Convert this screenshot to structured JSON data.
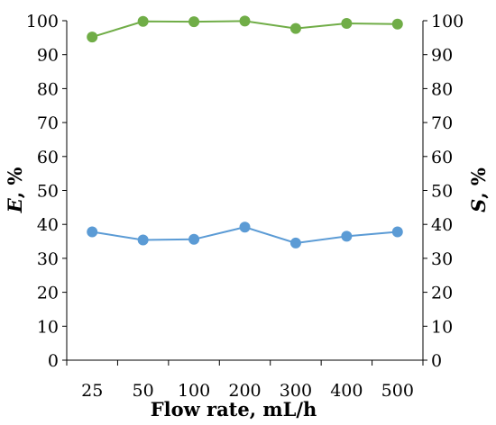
{
  "chart_data": {
    "type": "line",
    "categories": [
      "25",
      "50",
      "100",
      "200",
      "300",
      "400",
      "500"
    ],
    "xlabel": "Flow rate, mL/h",
    "ylabel_left_symbol": "E",
    "ylabel_left_unit": ", %",
    "ylabel_right_symbol": "S",
    "ylabel_right_unit": ", %",
    "ylim": [
      0,
      100
    ],
    "yticks": [
      0,
      10,
      20,
      30,
      40,
      50,
      60,
      70,
      80,
      90,
      100
    ],
    "grid": false,
    "series": [
      {
        "axis": "right",
        "color": "#70ad47",
        "values": [
          95.2,
          99.8,
          99.7,
          99.9,
          97.7,
          99.2,
          99.0
        ]
      },
      {
        "axis": "left",
        "color": "#5b9bd5",
        "values": [
          37.8,
          35.4,
          35.6,
          39.2,
          34.5,
          36.5,
          37.8
        ]
      }
    ]
  }
}
